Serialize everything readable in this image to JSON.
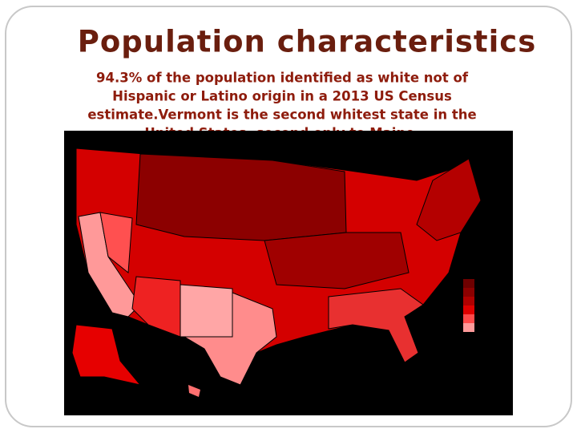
{
  "slide": {
    "title": "Population characteristics",
    "body": {
      "lines": [
        "94.3% of the population identified as white not of",
        "Hispanic or Latino origin in a 2013 US Census",
        "estimate.Vermont is the second whitest state in the",
        "United States, second only to Maine."
      ]
    }
  }
}
